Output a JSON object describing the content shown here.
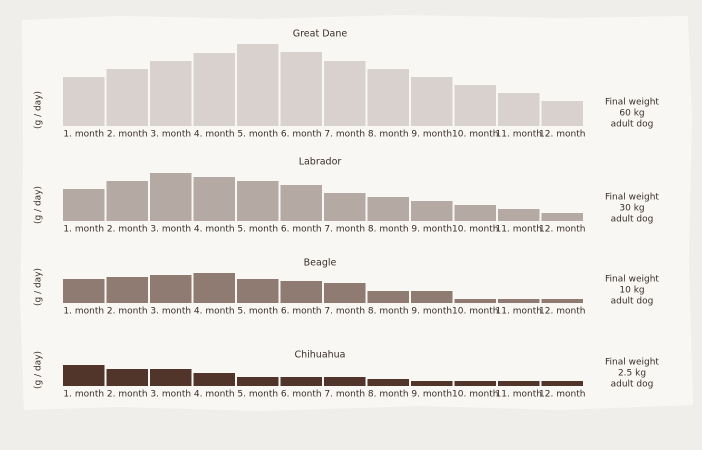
{
  "chart_data": [
    {
      "type": "bar",
      "title": "Great Dane",
      "ylabel": "(g / day)",
      "categories": [
        "1. month",
        "2. month",
        "3. month",
        "4. month",
        "5. month",
        "6. month",
        "7. month",
        "8. month",
        "9. month",
        "10. month",
        "11. month",
        "12. month"
      ],
      "values": [
        49,
        57,
        65,
        73,
        82,
        74,
        65,
        57,
        49,
        41,
        33,
        25
      ],
      "color": "#d8d1cd",
      "ylim": [
        0,
        90
      ],
      "note": [
        "Final weight",
        "60 kg",
        "adult dog"
      ]
    },
    {
      "type": "bar",
      "title": "Labrador",
      "ylabel": "(g / day)",
      "categories": [
        "1. month",
        "2. month",
        "3. month",
        "4. month",
        "5. month",
        "6. month",
        "7. month",
        "8. month",
        "9. month",
        "10. month",
        "11. month",
        "12. month"
      ],
      "values": [
        32,
        40,
        48,
        44,
        40,
        36,
        28,
        24,
        20,
        16,
        12,
        8
      ],
      "color": "#b4a9a3",
      "ylim": [
        0,
        90
      ],
      "note": [
        "Final weight",
        "30 kg",
        "adult dog"
      ]
    },
    {
      "type": "bar",
      "title": "Beagle",
      "ylabel": "(g / day)",
      "categories": [
        "1. month",
        "2. month",
        "3. month",
        "4. month",
        "5. month",
        "6. month",
        "7. month",
        "8. month",
        "9. month",
        "10. month",
        "11. month",
        "12. month"
      ],
      "values": [
        24,
        26,
        28,
        30,
        24,
        22,
        20,
        12,
        12,
        4,
        4,
        4
      ],
      "color": "#8f7b71",
      "ylim": [
        0,
        90
      ],
      "note": [
        "Final weight",
        "10 kg",
        "adult dog"
      ]
    },
    {
      "type": "bar",
      "title": "Chihuahua",
      "ylabel": "(g / day)",
      "categories": [
        "1. month",
        "2. month",
        "3. month",
        "4. month",
        "5. month",
        "6. month",
        "7. month",
        "8. month",
        "9. month",
        "10. month",
        "11. month",
        "12. month"
      ],
      "values": [
        21,
        17,
        17,
        13,
        9,
        9,
        9,
        7,
        5,
        5,
        5,
        5
      ],
      "color": "#51352b",
      "ylim": [
        0,
        90
      ],
      "note": [
        "Final weight",
        "2.5 kg",
        "adult dog"
      ]
    }
  ]
}
